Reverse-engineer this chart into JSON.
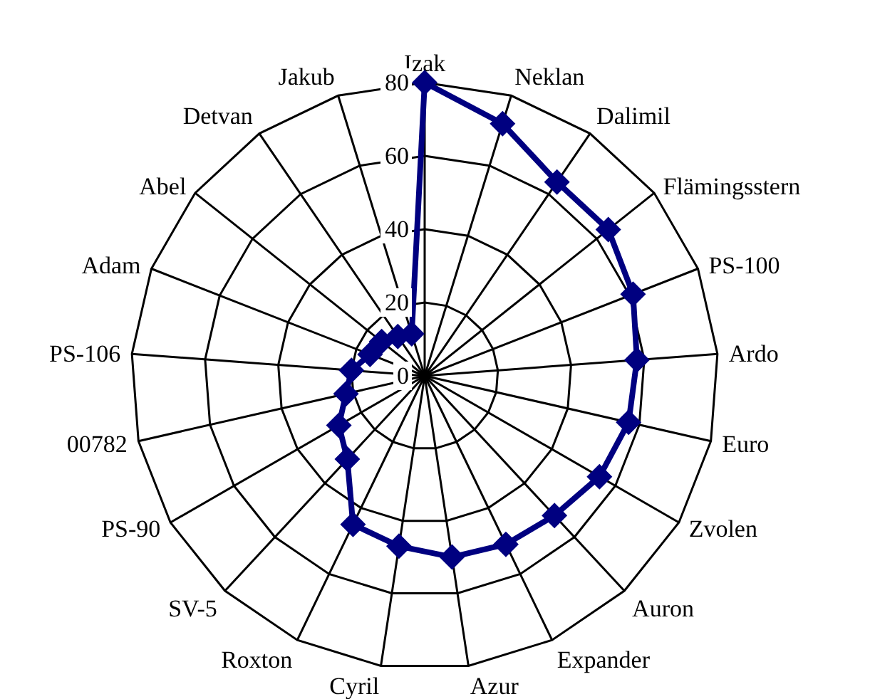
{
  "chart_data": {
    "type": "radar",
    "categories": [
      "Izak",
      "Neklan",
      "Dalimil",
      "Flämingsstern",
      "PS-100",
      "Ardo",
      "Euro",
      "Zvolen",
      "Auron",
      "Expander",
      "Azur",
      "Cyril",
      "Roxton",
      "SV-5",
      "PS-90",
      "00782",
      "PS-106",
      "Adam",
      "Abel",
      "Detvan",
      "Jakub"
    ],
    "series": [
      {
        "color": "#000080",
        "values": [
          80,
          72,
          64,
          64,
          61,
          58,
          57,
          55,
          52,
          51,
          50,
          47,
          45,
          31,
          27,
          22,
          20,
          16,
          15,
          13,
          12
        ]
      }
    ],
    "ylim": [
      0,
      80
    ],
    "yticks": [
      0,
      20,
      40,
      60,
      80
    ],
    "grid": true,
    "marker": "diamond"
  }
}
